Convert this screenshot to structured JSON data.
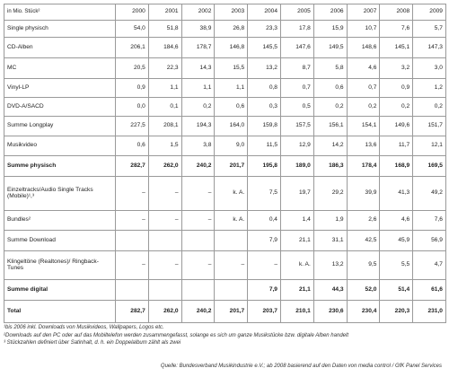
{
  "table": {
    "header_label": "in Mio. Stück²",
    "years": [
      "2000",
      "2001",
      "2002",
      "2003",
      "2004",
      "2005",
      "2006",
      "2007",
      "2008",
      "2009"
    ],
    "rows": [
      {
        "label": "Single physisch",
        "values": [
          "54,0",
          "51,8",
          "38,9",
          "26,8",
          "23,3",
          "17,8",
          "15,9",
          "10,7",
          "7,6",
          "5,7"
        ],
        "bold": false
      },
      {
        "label": "CD-Alben",
        "values": [
          "206,1",
          "184,6",
          "178,7",
          "146,8",
          "145,5",
          "147,6",
          "149,5",
          "148,6",
          "145,1",
          "147,3"
        ],
        "bold": false
      },
      {
        "label": "MC",
        "values": [
          "20,5",
          "22,3",
          "14,3",
          "15,5",
          "13,2",
          "8,7",
          "5,8",
          "4,6",
          "3,2",
          "3,0"
        ],
        "bold": false
      },
      {
        "label": "Vinyl-LP",
        "values": [
          "0,9",
          "1,1",
          "1,1",
          "1,1",
          "0,8",
          "0,7",
          "0,6",
          "0,7",
          "0,9",
          "1,2"
        ],
        "bold": false
      },
      {
        "label": "DVD-A/SACD",
        "values": [
          "0,0",
          "0,1",
          "0,2",
          "0,6",
          "0,3",
          "0,5",
          "0,2",
          "0,2",
          "0,2",
          "0,2"
        ],
        "bold": false
      },
      {
        "label": "Summe Longplay",
        "values": [
          "227,5",
          "208,1",
          "194,3",
          "164,0",
          "159,8",
          "157,5",
          "156,1",
          "154,1",
          "149,6",
          "151,7"
        ],
        "bold": false
      },
      {
        "label": "Musikvideo",
        "values": [
          "0,6",
          "1,5",
          "3,8",
          "9,0",
          "11,5",
          "12,9",
          "14,2",
          "13,6",
          "11,7",
          "12,1"
        ],
        "bold": false
      },
      {
        "label": "Summe physisch",
        "values": [
          "282,7",
          "262,0",
          "240,2",
          "201,7",
          "195,8",
          "189,0",
          "186,3",
          "178,4",
          "168,9",
          "169,5"
        ],
        "bold": true
      },
      {
        "label": "Einzeltracks/Audio Single Tracks (Mobile)¹,³",
        "values": [
          "–",
          "–",
          "–",
          "k. A.",
          "7,5",
          "19,7",
          "29,2",
          "39,9",
          "41,3",
          "49,2"
        ],
        "bold": false
      },
      {
        "label": "Bundles²",
        "values": [
          "–",
          "–",
          "–",
          "k. A.",
          "0,4",
          "1,4",
          "1,9",
          "2,6",
          "4,6",
          "7,6"
        ],
        "bold": false
      },
      {
        "label": "Summe Download",
        "values": [
          "",
          "",
          "",
          "",
          "7,9",
          "21,1",
          "31,1",
          "42,5",
          "45,9",
          "56,9"
        ],
        "bold": false
      },
      {
        "label": "Klingeltöne (Realtones)/ Ringback-Tunes",
        "values": [
          "–",
          "–",
          "–",
          "–",
          "–",
          "k. A.",
          "13,2",
          "9,5",
          "5,5",
          "4,7"
        ],
        "bold": false
      },
      {
        "label": "Summe digital",
        "values": [
          "",
          "",
          "",
          "",
          "7,9",
          "21,1",
          "44,3",
          "52,0",
          "51,4",
          "61,6"
        ],
        "bold": true
      },
      {
        "label": "Total",
        "values": [
          "282,7",
          "262,0",
          "240,2",
          "201,7",
          "203,7",
          "210,1",
          "230,6",
          "230,4",
          "220,3",
          "231,0"
        ],
        "bold": true
      }
    ]
  },
  "notes": [
    "¹bis 2006 inkl. Downloads von Musikvideos, Wallpapers, Logos etc.",
    "²Downloads auf den PC oder auf das Mobiltelefon werden zusammengefasst, solange es sich um ganze Musikstücke bzw. digitale Alben handelt",
    "³ Stückzahlen definiert über Satinhalt, d. h. ein Doppelalbum zählt als zwei"
  ],
  "source": "Quelle: Bundesverband Musikindustrie e.V.; ab 2008 basierend auf den Daten von media control / GfK Panel Services"
}
